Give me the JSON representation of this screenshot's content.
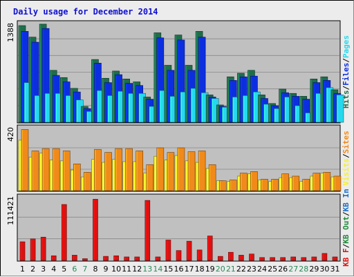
{
  "title": "Daily usage for December 2014",
  "colors": {
    "hits": "#1f6e4a",
    "files": "#0b2fe0",
    "pages": "#26d8ee",
    "visits": "#f6f12b",
    "sites": "#f08a1a",
    "kbin": "#1a6ec8",
    "kbout": "#1f8a3a",
    "kbf": "#e01010",
    "weekend": "#2a8a5a",
    "weekday": "#000000",
    "title": "#1010d0",
    "panel": "#c0c0c0",
    "grid": "#888888"
  },
  "chart_data": {
    "type": "bar",
    "days": [
      "1",
      "2",
      "3",
      "4",
      "5",
      "6",
      "7",
      "8",
      "9",
      "10",
      "11",
      "12",
      "13",
      "14",
      "15",
      "16",
      "17",
      "18",
      "19",
      "20",
      "21",
      "22",
      "23",
      "24",
      "25",
      "26",
      "27",
      "28",
      "29",
      "30",
      "31"
    ],
    "weekend_days": [
      "6",
      "7",
      "13",
      "14",
      "20",
      "21",
      "27",
      "28"
    ],
    "panels": [
      {
        "ymax_label": "1388",
        "ymax": 1388,
        "legend": [
          {
            "text": "Hits",
            "color_key": "hits"
          },
          {
            "text": "/",
            "color_key": "weekday"
          },
          {
            "text": "Files",
            "color_key": "files"
          },
          {
            "text": "/",
            "color_key": "weekday"
          },
          {
            "text": "Pages",
            "color_key": "pages"
          }
        ],
        "series": [
          {
            "name": "Hits",
            "color_key": "hits",
            "values": [
              1340,
              1180,
              1360,
              720,
              620,
              470,
              220,
              870,
              610,
              710,
              600,
              560,
              350,
              1240,
              790,
              1210,
              790,
              1260,
              380,
              240,
              630,
              680,
              720,
              380,
              260,
              460,
              400,
              360,
              600,
              630,
              450
            ]
          },
          {
            "name": "Files",
            "color_key": "files",
            "values": [
              1260,
              1110,
              1300,
              650,
              560,
              420,
              190,
              820,
              550,
              660,
              540,
              510,
              320,
              1170,
              720,
              1140,
              720,
              1180,
              350,
              220,
              580,
              630,
              640,
              330,
              230,
              410,
              360,
              320,
              550,
              580,
              400
            ]
          },
          {
            "name": "Pages",
            "color_key": "pages",
            "values": [
              550,
              370,
              400,
              400,
              370,
              310,
              150,
              440,
              370,
              430,
              400,
              400,
              220,
              440,
              360,
              420,
              470,
              410,
              330,
              210,
              350,
              370,
              420,
              250,
              190,
              350,
              230,
              130,
              400,
              480,
              380
            ]
          }
        ]
      },
      {
        "ymax_label": "420",
        "ymax": 420,
        "legend": [
          {
            "text": "Visits",
            "color_key": "visits"
          },
          {
            "text": "/",
            "color_key": "weekday"
          },
          {
            "text": "Sites",
            "color_key": "sites"
          }
        ],
        "series": [
          {
            "name": "Visits",
            "color_key": "visits",
            "values": [
              330,
              220,
              245,
              200,
              195,
              135,
              90,
              205,
              185,
              205,
              190,
              190,
              115,
              225,
              200,
              230,
              195,
              185,
              145,
              65,
              60,
              95,
              110,
              70,
              60,
              85,
              85,
              60,
              95,
              115,
              90
            ]
          },
          {
            "name": "Sites",
            "color_key": "sites",
            "values": [
              400,
              260,
              275,
              275,
              260,
              175,
              120,
              270,
              250,
              275,
              275,
              260,
              170,
              280,
              250,
              280,
              255,
              260,
              170,
              65,
              70,
              115,
              125,
              75,
              75,
              110,
              95,
              75,
              115,
              120,
              95
            ]
          }
        ]
      },
      {
        "ymax_label": "111421",
        "ymax": 111421,
        "legend": [
          {
            "text": "KB F",
            "color_key": "kbf"
          },
          {
            "text": "/",
            "color_key": "weekday"
          },
          {
            "text": "KB Out",
            "color_key": "kbout"
          },
          {
            "text": "/",
            "color_key": "weekday"
          },
          {
            "text": "KB In",
            "color_key": "kbin"
          }
        ],
        "series": [
          {
            "name": "KB F",
            "color_key": "kbf",
            "values": [
              32000,
              37000,
              40000,
              8000,
              96000,
              9000,
              3000,
              105000,
              7000,
              8000,
              6000,
              6000,
              103000,
              6000,
              35000,
              17000,
              33000,
              18000,
              42000,
              7000,
              14000,
              9000,
              11000,
              5000,
              5000,
              5000,
              6000,
              5000,
              6000,
              12000,
              6000
            ]
          }
        ]
      }
    ]
  }
}
